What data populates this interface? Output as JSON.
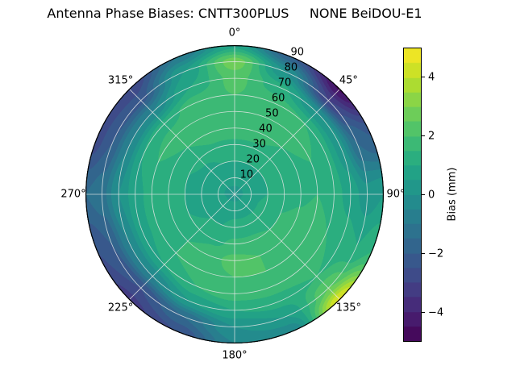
{
  "chart_data": {
    "type": "polar_contour",
    "title": "Antenna Phase Biases: CNTT300PLUS     NONE BeiDOU-E1",
    "theta_ticks": [
      {
        "deg": 0,
        "label": "0°"
      },
      {
        "deg": 45,
        "label": "45°"
      },
      {
        "deg": 90,
        "label": "90°"
      },
      {
        "deg": 135,
        "label": "135°"
      },
      {
        "deg": 180,
        "label": "180°"
      },
      {
        "deg": 225,
        "label": "225°"
      },
      {
        "deg": 270,
        "label": "270°"
      },
      {
        "deg": 315,
        "label": "315°"
      }
    ],
    "r_ticks": [
      {
        "value": 10,
        "label": "10"
      },
      {
        "value": 20,
        "label": "20"
      },
      {
        "value": 30,
        "label": "30"
      },
      {
        "value": 40,
        "label": "40"
      },
      {
        "value": 50,
        "label": "50"
      },
      {
        "value": 60,
        "label": "60"
      },
      {
        "value": 70,
        "label": "70"
      },
      {
        "value": 80,
        "label": "80"
      },
      {
        "value": 90,
        "label": "90"
      }
    ],
    "r_max": 90,
    "r_label_azimuth_deg": 22.5,
    "levels_step_mm": 0.5,
    "grid": {
      "azimuth_start_deg": 0,
      "azimuth_step_deg": 22.5,
      "r_start": 0,
      "r_step": 10,
      "bias_mm": [
        [
          0.3,
          0.7,
          1.0,
          1.4,
          1.8,
          2.0,
          2.0,
          2.2,
          2.8,
          0.8
        ],
        [
          0.3,
          0.7,
          1.0,
          1.4,
          1.8,
          2.0,
          1.8,
          1.2,
          0.0,
          -2.0
        ],
        [
          0.3,
          0.7,
          1.0,
          1.2,
          1.5,
          1.8,
          1.5,
          0.0,
          -3.0,
          -4.6
        ],
        [
          0.3,
          0.7,
          1.0,
          1.2,
          1.4,
          1.5,
          1.2,
          0.2,
          -1.5,
          -2.0
        ],
        [
          0.3,
          0.7,
          1.0,
          1.2,
          1.4,
          1.5,
          1.2,
          0.8,
          0.2,
          0.5
        ],
        [
          0.3,
          0.8,
          1.2,
          1.5,
          1.6,
          1.8,
          1.5,
          1.2,
          1.0,
          1.5
        ],
        [
          0.3,
          0.8,
          1.2,
          1.5,
          1.8,
          2.0,
          1.8,
          1.5,
          2.5,
          4.6
        ],
        [
          0.3,
          0.8,
          1.2,
          1.6,
          2.0,
          2.0,
          1.8,
          1.2,
          0.5,
          -0.5
        ],
        [
          0.3,
          0.8,
          1.2,
          1.6,
          2.2,
          2.0,
          1.8,
          1.0,
          0.0,
          -0.5
        ],
        [
          0.3,
          0.8,
          1.0,
          1.4,
          1.8,
          1.8,
          1.5,
          0.5,
          -1.5,
          -2.5
        ],
        [
          0.3,
          0.7,
          1.0,
          1.2,
          1.5,
          1.5,
          1.0,
          -0.5,
          -2.5,
          -3.2
        ],
        [
          0.3,
          0.7,
          0.8,
          1.0,
          1.2,
          1.2,
          0.8,
          -0.5,
          -2.0,
          -2.5
        ],
        [
          0.3,
          0.6,
          0.8,
          1.0,
          1.2,
          1.2,
          0.8,
          0.0,
          -1.2,
          -1.5
        ],
        [
          0.3,
          0.6,
          0.8,
          1.0,
          1.4,
          1.5,
          1.0,
          -0.5,
          -2.0,
          -2.8
        ],
        [
          0.3,
          0.6,
          0.8,
          1.2,
          1.5,
          1.8,
          1.2,
          -0.5,
          -2.2,
          -3.0
        ],
        [
          0.3,
          0.7,
          1.0,
          1.4,
          1.8,
          2.0,
          1.8,
          1.0,
          0.5,
          -1.0
        ]
      ]
    },
    "colorbar": {
      "label": "Bias (mm)",
      "min": -5,
      "max": 5,
      "colormap": "viridis",
      "ticks": [
        {
          "value": 4,
          "label": "4"
        },
        {
          "value": 2,
          "label": "2"
        },
        {
          "value": 0,
          "label": "0"
        },
        {
          "value": -2,
          "label": "−2"
        },
        {
          "value": -4,
          "label": "−4"
        }
      ]
    },
    "colormap_stops": [
      {
        "pos": 0.0,
        "hex": "#440154"
      },
      {
        "pos": 0.1,
        "hex": "#482475"
      },
      {
        "pos": 0.2,
        "hex": "#414487"
      },
      {
        "pos": 0.3,
        "hex": "#355f8d"
      },
      {
        "pos": 0.4,
        "hex": "#2a788e"
      },
      {
        "pos": 0.5,
        "hex": "#21918c"
      },
      {
        "pos": 0.6,
        "hex": "#22a884"
      },
      {
        "pos": 0.7,
        "hex": "#44bf70"
      },
      {
        "pos": 0.8,
        "hex": "#7ad151"
      },
      {
        "pos": 0.9,
        "hex": "#bddf26"
      },
      {
        "pos": 1.0,
        "hex": "#fde725"
      }
    ],
    "grid_line_color": "#e6e6e6",
    "spine_color": "#000000",
    "background": "#ffffff"
  }
}
